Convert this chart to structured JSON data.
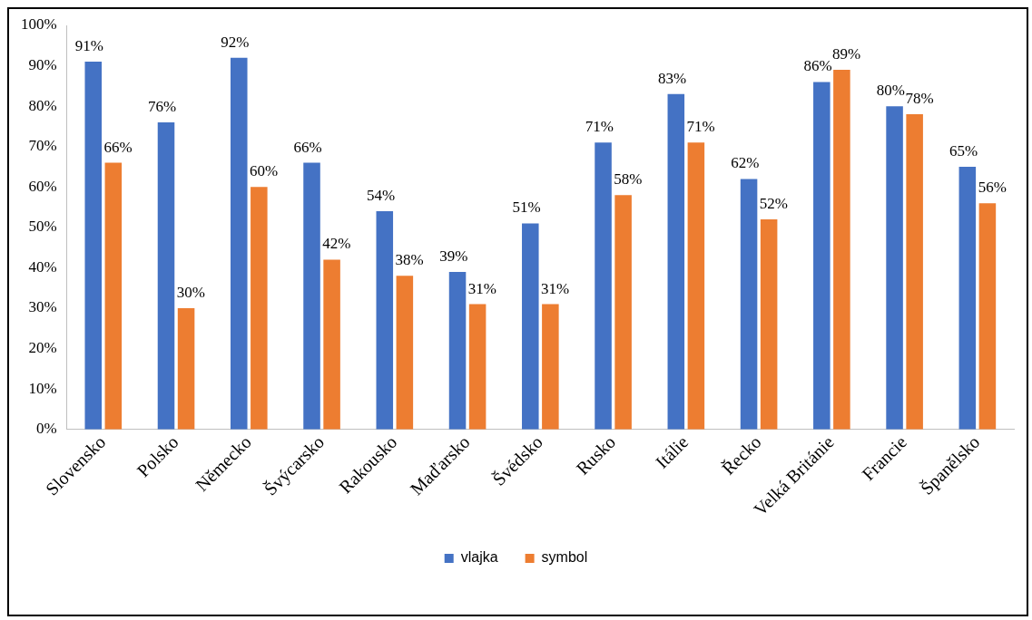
{
  "chart_data": {
    "type": "bar",
    "categories": [
      "Slovensko",
      "Polsko",
      "Německo",
      "Švýcarsko",
      "Rakousko",
      "Maďarsko",
      "Švédsko",
      "Rusko",
      "Itálie",
      "Řecko",
      "Velká Británie",
      "Francie",
      "Španělsko"
    ],
    "series": [
      {
        "name": "vlajka",
        "color": "#4472c4",
        "values": [
          91,
          76,
          92,
          66,
          54,
          39,
          51,
          71,
          83,
          62,
          86,
          80,
          65
        ],
        "value_labels": [
          "91%",
          "76%",
          "92%",
          "66%",
          "54%",
          "39%",
          "51%",
          "71%",
          "83%",
          "62%",
          "86%",
          "80%",
          "65%"
        ]
      },
      {
        "name": "symbol",
        "color": "#ed7d31",
        "values": [
          66,
          30,
          60,
          42,
          38,
          31,
          31,
          58,
          71,
          52,
          89,
          78,
          56
        ],
        "value_labels": [
          "66%",
          "30%",
          "60%",
          "42%",
          "38%",
          "31%",
          "31%",
          "58%",
          "71%",
          "52%",
          "89%",
          "78%",
          "56%"
        ]
      }
    ],
    "ylim": [
      0,
      100
    ],
    "yticks": [
      {
        "value": 0,
        "label": "0%"
      },
      {
        "value": 10,
        "label": "10%"
      },
      {
        "value": 20,
        "label": "20%"
      },
      {
        "value": 30,
        "label": "30%"
      },
      {
        "value": 40,
        "label": "40%"
      },
      {
        "value": 50,
        "label": "50%"
      },
      {
        "value": 60,
        "label": "60%"
      },
      {
        "value": 70,
        "label": "70%"
      },
      {
        "value": 80,
        "label": "80%"
      },
      {
        "value": 90,
        "label": "90%"
      },
      {
        "value": 100,
        "label": "100%"
      }
    ],
    "grid": false,
    "legend": "bottom"
  }
}
